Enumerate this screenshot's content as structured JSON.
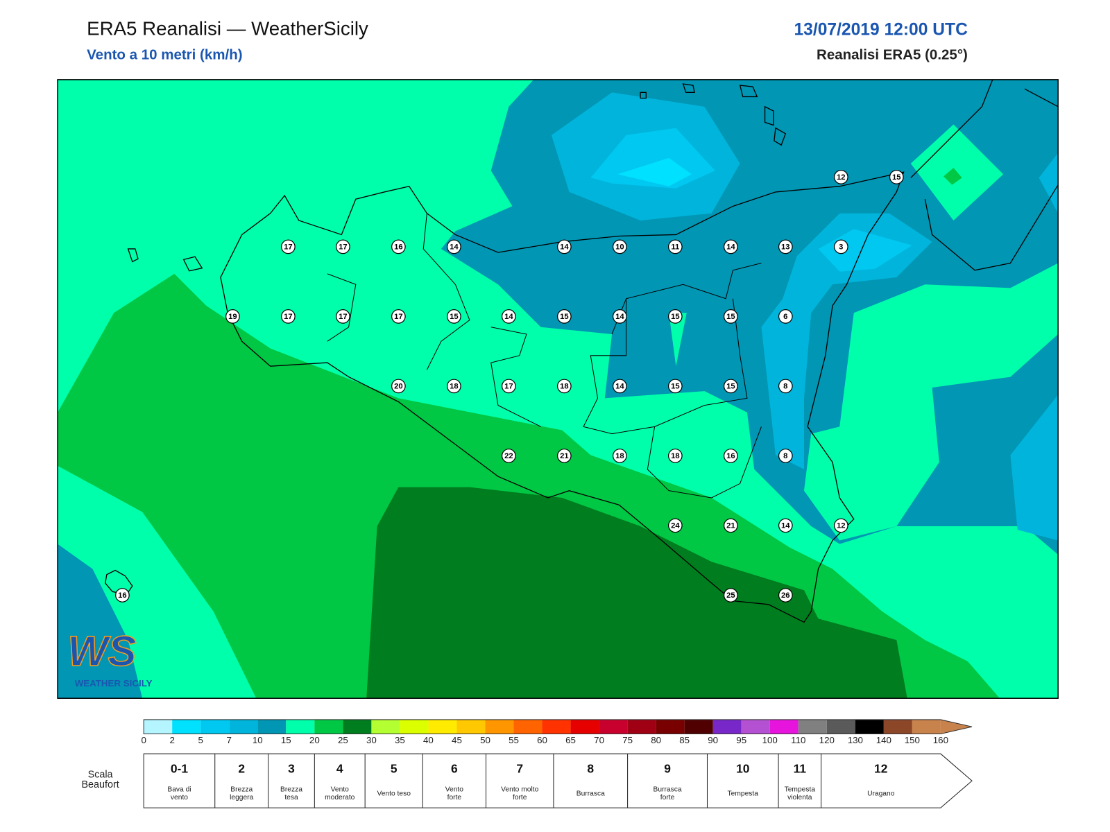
{
  "header": {
    "title": "ERA5 Reanalisi — WeatherSicily",
    "subtitle": "Vento a 10 metri (km/h)",
    "datetime": "13/07/2019 12:00 UTC",
    "source": "Reanalisi ERA5 (0.25°)"
  },
  "map": {
    "stations": [
      17,
      17,
      16,
      14,
      14,
      10,
      11,
      14,
      13,
      3,
      12,
      15,
      19,
      17,
      17,
      17,
      15,
      14,
      15,
      14,
      15,
      15,
      6,
      20,
      18,
      17,
      18,
      14,
      15,
      15,
      8,
      22,
      21,
      18,
      18,
      16,
      8,
      24,
      21,
      14,
      12,
      16,
      25,
      26
    ]
  },
  "logo": {
    "mark": "WS",
    "name": "WEATHER SICILY"
  },
  "colorbar": {
    "ticks": [
      0,
      2,
      5,
      7,
      10,
      15,
      20,
      25,
      30,
      35,
      40,
      45,
      50,
      55,
      60,
      65,
      70,
      75,
      80,
      85,
      90,
      95,
      100,
      110,
      120,
      130,
      140,
      150,
      160
    ],
    "colors": [
      "#b4f5ff",
      "#00e1ff",
      "#00c8f0",
      "#00b4dc",
      "#0096b4",
      "#00ffaa",
      "#00c844",
      "#007d1e",
      "#b4ff32",
      "#dcff00",
      "#ffeb00",
      "#ffc800",
      "#ff9600",
      "#ff6400",
      "#ff3200",
      "#e60000",
      "#c8002d",
      "#a00014",
      "#780000",
      "#500000",
      "#7828c8",
      "#b450d2",
      "#e614dc",
      "#808080",
      "#5a5a5a",
      "#000000",
      "#8c4628",
      "#c8824b"
    ]
  },
  "beaufort": {
    "label": [
      "Scala",
      "Beaufort"
    ],
    "levels": [
      {
        "force": "0-1",
        "desc": [
          "Bava di",
          "vento"
        ]
      },
      {
        "force": "2",
        "desc": [
          "Brezza",
          "leggera"
        ]
      },
      {
        "force": "3",
        "desc": [
          "Brezza",
          "tesa"
        ]
      },
      {
        "force": "4",
        "desc": [
          "Vento",
          "moderato"
        ]
      },
      {
        "force": "5",
        "desc": [
          "Vento teso"
        ]
      },
      {
        "force": "6",
        "desc": [
          "Vento",
          "forte"
        ]
      },
      {
        "force": "7",
        "desc": [
          "Vento molto",
          "forte"
        ]
      },
      {
        "force": "8",
        "desc": [
          "Burrasca"
        ]
      },
      {
        "force": "9",
        "desc": [
          "Burrasca",
          "forte"
        ]
      },
      {
        "force": "10",
        "desc": [
          "Tempesta"
        ]
      },
      {
        "force": "11",
        "desc": [
          "Tempesta",
          "violenta"
        ]
      },
      {
        "force": "12",
        "desc": [
          "Uragano"
        ]
      }
    ]
  }
}
